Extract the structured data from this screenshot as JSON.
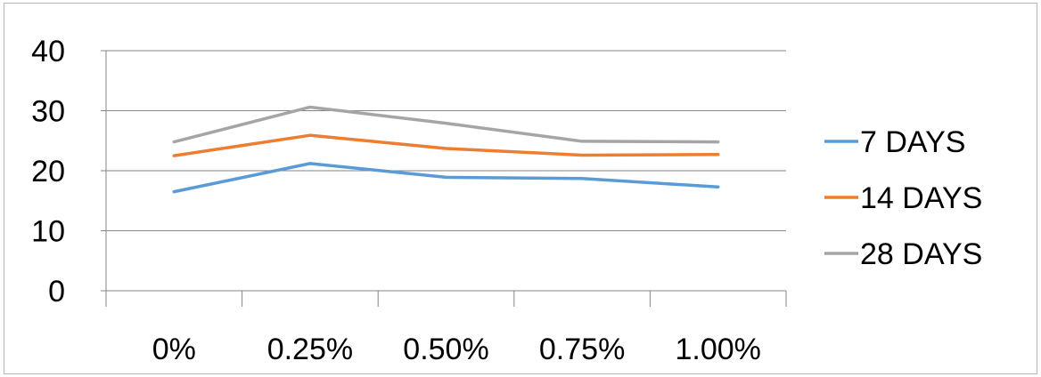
{
  "chart_data": {
    "type": "line",
    "categories": [
      "0%",
      "0.25%",
      "0.50%",
      "0.75%",
      "1.00%"
    ],
    "ylim": [
      0,
      40
    ],
    "yticks": [
      0,
      10,
      20,
      30,
      40
    ],
    "grid": true,
    "legend_position": "right",
    "series": [
      {
        "name": "7 DAYS",
        "color": "#5b9bd5",
        "values": [
          16.5,
          21.2,
          18.9,
          18.7,
          17.3
        ]
      },
      {
        "name": "14 DAYS",
        "color": "#ed7d31",
        "values": [
          22.5,
          25.9,
          23.7,
          22.6,
          22.7
        ]
      },
      {
        "name": "28 DAYS",
        "color": "#a5a5a5",
        "values": [
          24.8,
          30.6,
          27.9,
          24.9,
          24.8
        ]
      }
    ]
  }
}
